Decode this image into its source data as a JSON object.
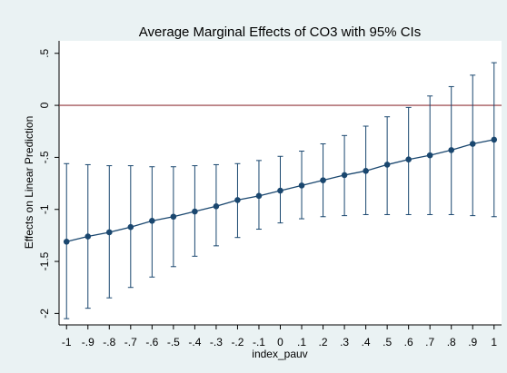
{
  "chart_data": {
    "type": "errorbar-line",
    "title": "Average Marginal Effects of CO3 with 95% CIs",
    "xlabel": "index_pauv",
    "ylabel": "Effects on Linear Prediction",
    "x": [
      -1,
      -0.9,
      -0.8,
      -0.7,
      -0.6,
      -0.5,
      -0.4,
      -0.3,
      -0.2,
      -0.1,
      0,
      0.1,
      0.2,
      0.3,
      0.4,
      0.5,
      0.6,
      0.7,
      0.8,
      0.9,
      1
    ],
    "series": [
      {
        "color": "#1a476f",
        "values": [
          -1.31,
          -1.26,
          -1.22,
          -1.17,
          -1.11,
          -1.07,
          -1.02,
          -0.97,
          -0.91,
          -0.87,
          -0.82,
          -0.77,
          -0.72,
          -0.67,
          -0.63,
          -0.57,
          -0.52,
          -0.48,
          -0.43,
          -0.37,
          -0.33
        ],
        "ci_lower": [
          -2.05,
          -1.95,
          -1.85,
          -1.75,
          -1.65,
          -1.55,
          -1.45,
          -1.35,
          -1.27,
          -1.19,
          -1.13,
          -1.09,
          -1.07,
          -1.06,
          -1.05,
          -1.05,
          -1.05,
          -1.05,
          -1.05,
          -1.06,
          -1.07
        ],
        "ci_upper": [
          -0.56,
          -0.57,
          -0.58,
          -0.58,
          -0.59,
          -0.59,
          -0.58,
          -0.57,
          -0.56,
          -0.53,
          -0.49,
          -0.44,
          -0.37,
          -0.29,
          -0.2,
          -0.11,
          -0.02,
          0.09,
          0.18,
          0.29,
          0.41
        ]
      }
    ],
    "hline": 0,
    "hline_color": "#90353b",
    "xlim": [
      -1.035,
      1.035
    ],
    "ylim": [
      -2.11,
      0.62
    ],
    "xticks": [
      -1,
      {
        "value": -0.9,
        "label": "-.9"
      },
      {
        "value": -0.8,
        "label": "-.8"
      },
      {
        "value": -0.7,
        "label": "-.7"
      },
      {
        "value": -0.6,
        "label": "-.6"
      },
      {
        "value": -0.5,
        "label": "-.5"
      },
      {
        "value": -0.4,
        "label": "-.4"
      },
      {
        "value": -0.3,
        "label": "-.3"
      },
      {
        "value": -0.2,
        "label": "-.2"
      },
      {
        "value": -0.1,
        "label": "-.1"
      },
      0,
      {
        "value": 0.1,
        "label": ".1"
      },
      {
        "value": 0.2,
        "label": ".2"
      },
      {
        "value": 0.3,
        "label": ".3"
      },
      {
        "value": 0.4,
        "label": ".4"
      },
      {
        "value": 0.5,
        "label": ".5"
      },
      {
        "value": 0.6,
        "label": ".6"
      },
      {
        "value": 0.7,
        "label": ".7"
      },
      {
        "value": 0.8,
        "label": ".8"
      },
      {
        "value": 0.9,
        "label": ".9"
      },
      1
    ],
    "yticks": [
      {
        "value": 0.5,
        "label": ".5"
      },
      0,
      {
        "value": -0.5,
        "label": "-.5"
      },
      -1,
      -1.5,
      -2
    ],
    "grid": false
  }
}
